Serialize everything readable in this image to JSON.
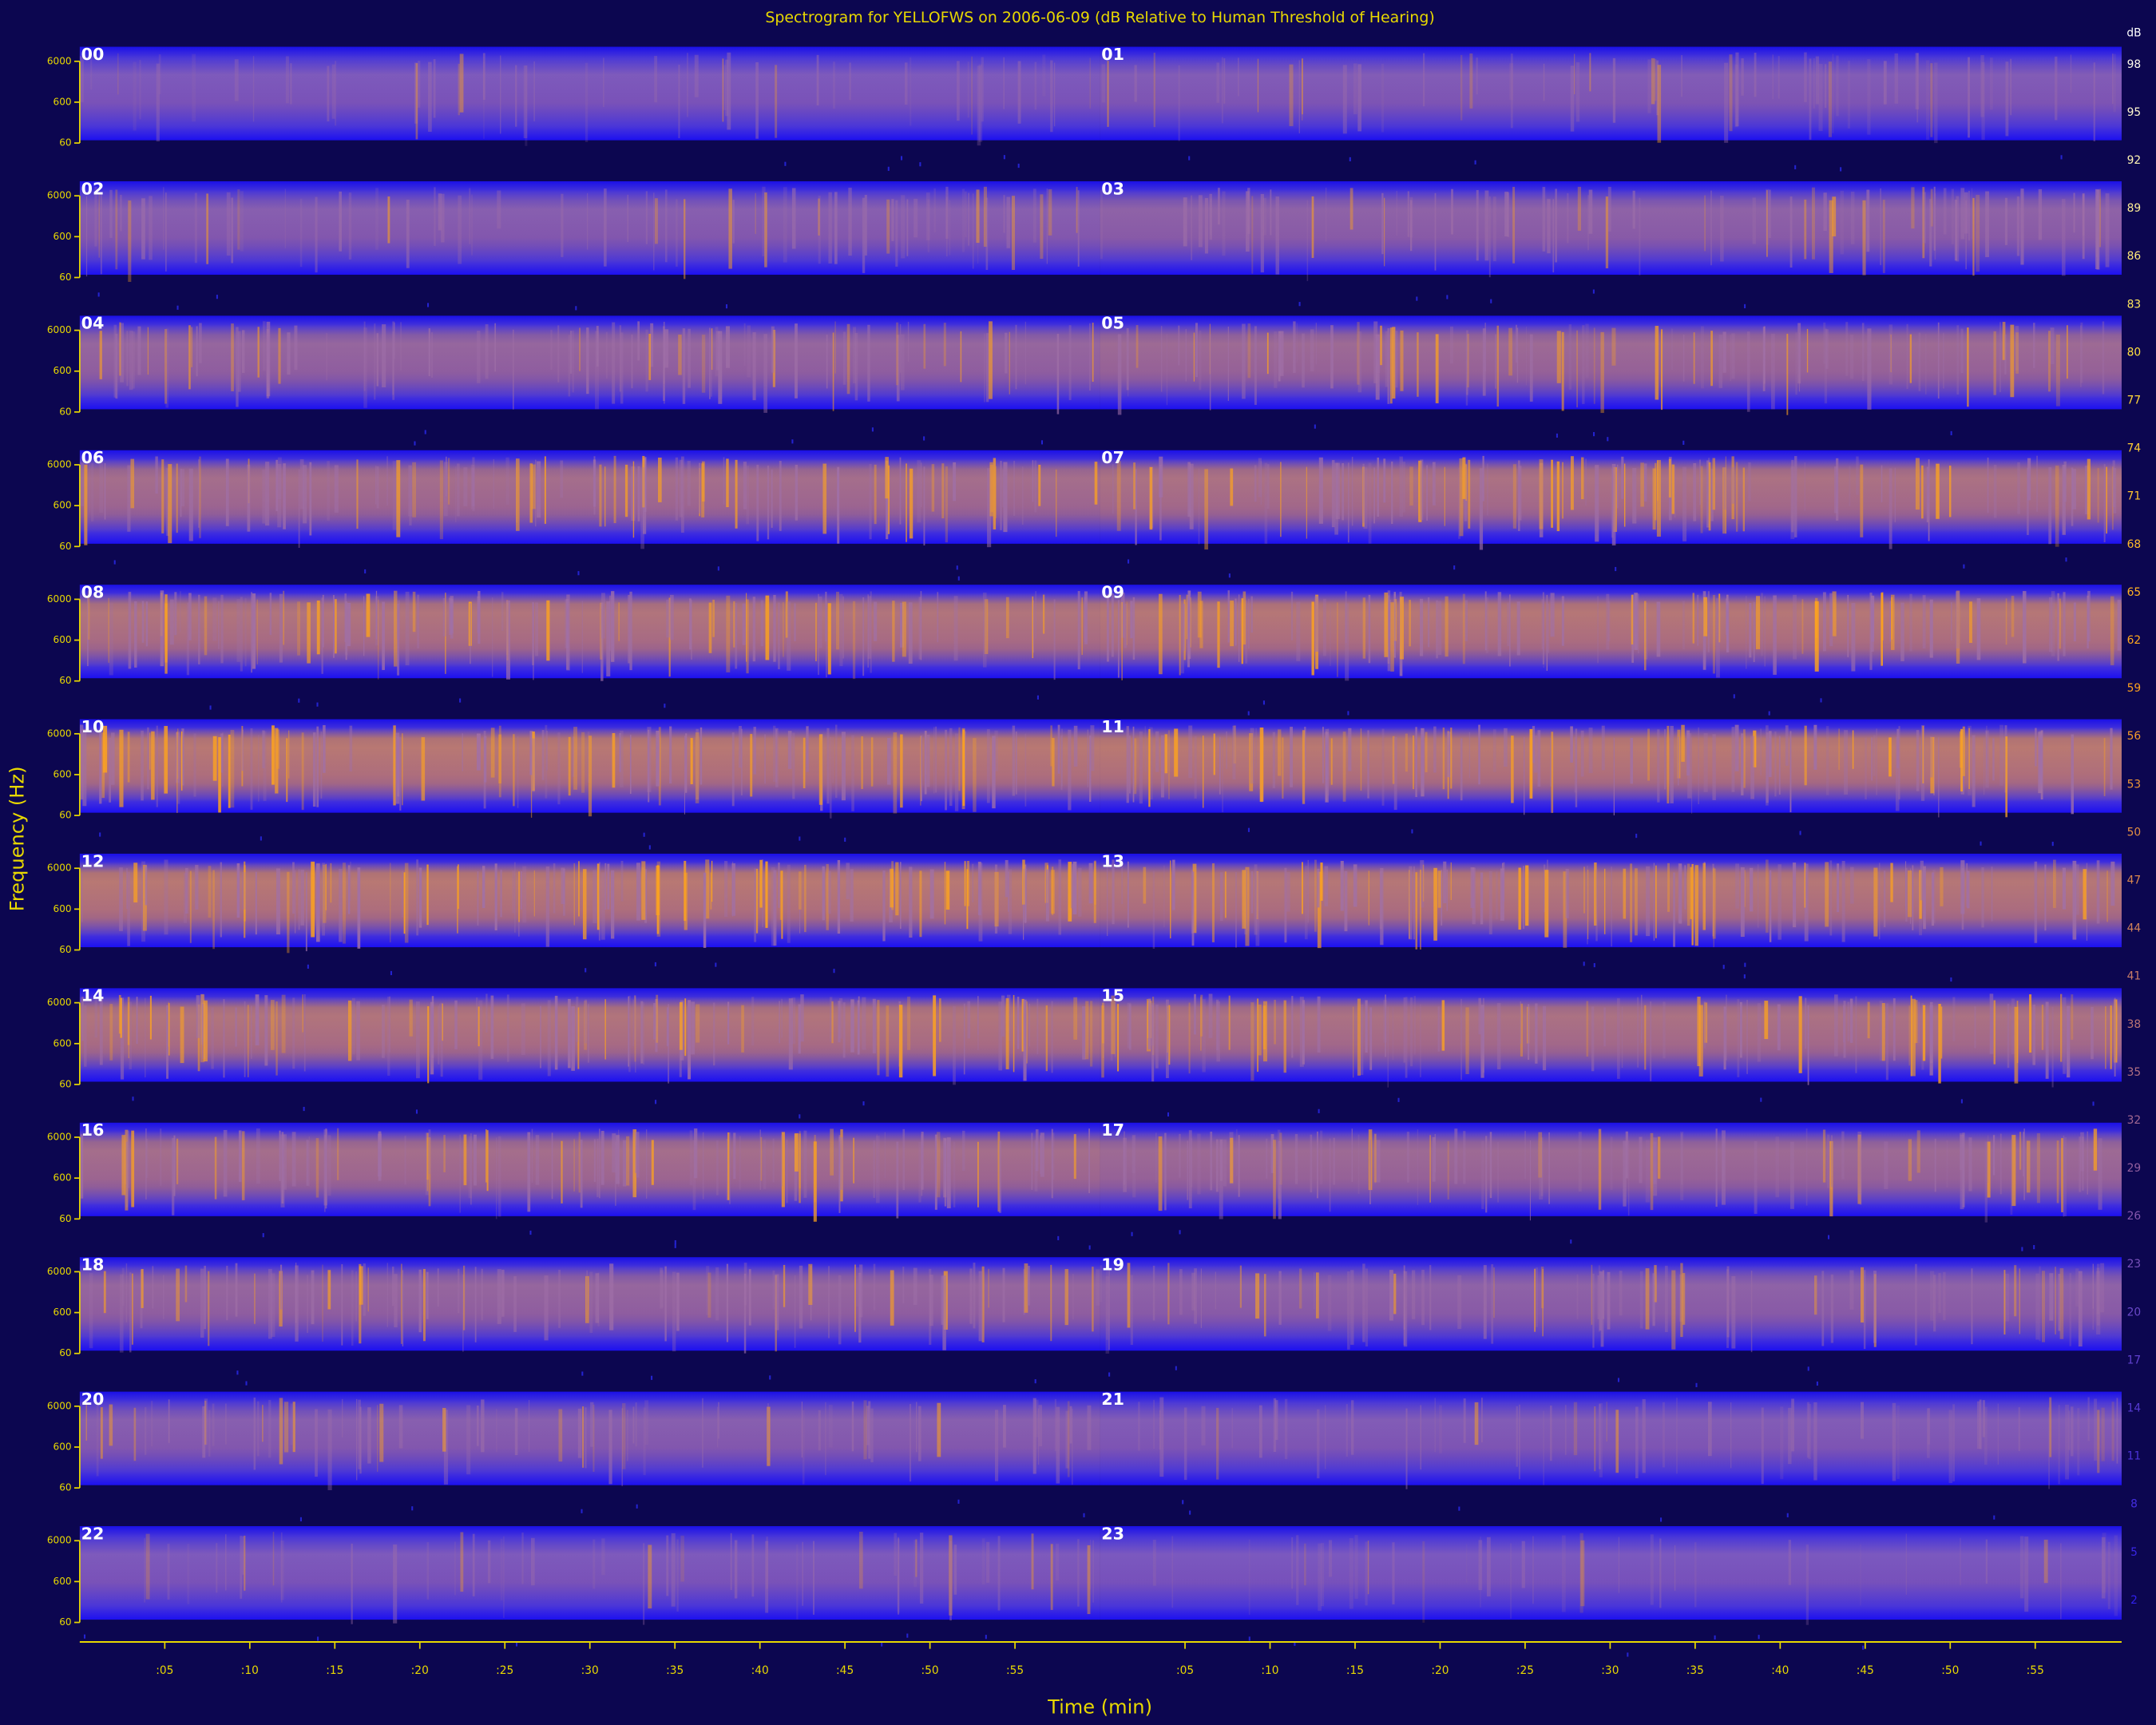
{
  "chart_data": {
    "type": "spectrogram",
    "title": "Spectrogram for YELLOFWS on 2006-06-09 (dB Relative to Human Threshold of Hearing)",
    "xlabel": "Time (min)",
    "ylabel": "Frequency (Hz)",
    "hours": [
      "00",
      "01",
      "02",
      "03",
      "04",
      "05",
      "06",
      "07",
      "08",
      "09",
      "10",
      "11",
      "12",
      "13",
      "14",
      "15",
      "16",
      "17",
      "18",
      "19",
      "20",
      "21",
      "22",
      "23"
    ],
    "xlim": [
      0,
      60
    ],
    "xticks": [
      {
        "value": 5,
        "label": ":05"
      },
      {
        "value": 10,
        "label": ":10"
      },
      {
        "value": 15,
        "label": ":15"
      },
      {
        "value": 20,
        "label": ":20"
      },
      {
        "value": 25,
        "label": ":25"
      },
      {
        "value": 30,
        "label": ":30"
      },
      {
        "value": 35,
        "label": ":35"
      },
      {
        "value": 40,
        "label": ":40"
      },
      {
        "value": 45,
        "label": ":45"
      },
      {
        "value": 50,
        "label": ":50"
      },
      {
        "value": 55,
        "label": ":55"
      }
    ],
    "ylim": [
      60,
      10000
    ],
    "yticks": [
      6000,
      600,
      60
    ],
    "log_y": true,
    "colorbar_label": "dB",
    "clim": [
      0,
      100
    ],
    "colorbar_ticks": [
      98,
      95,
      92,
      89,
      86,
      83,
      80,
      77,
      74,
      71,
      68,
      65,
      62,
      59,
      56,
      53,
      50,
      47,
      44,
      41,
      38,
      35,
      32,
      29,
      26,
      23,
      20,
      17,
      14,
      11,
      8,
      5,
      2
    ],
    "colormap": [
      "#2a1cf0",
      "#6a48c8",
      "#c47a6a",
      "#ffa21a",
      "#ffe040",
      "#ffffff"
    ],
    "axis_color": "#e8d800",
    "background": "#0c0650"
  }
}
